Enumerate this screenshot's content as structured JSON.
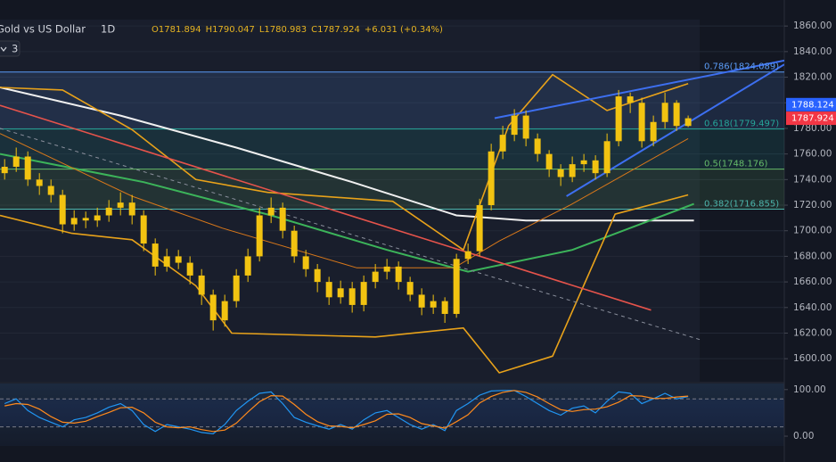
{
  "chart_data": {
    "type": "candlestick",
    "title": "Gold vs US Dollar",
    "interval": "1D",
    "ohlc_header": [
      "O1781.894",
      "H1790.047",
      "L1780.983",
      "C1787.924",
      "+6.031 (+0.34%)"
    ],
    "indicator_count": 3,
    "color": "#f2c311",
    "x": [
      0,
      1,
      2,
      3,
      4,
      5,
      6,
      7,
      8,
      9,
      10,
      11,
      12,
      13,
      14,
      15,
      16,
      17,
      18,
      19,
      20,
      21,
      22,
      23,
      24,
      25,
      26,
      27,
      28,
      29,
      30,
      31,
      32,
      33,
      34,
      35,
      36,
      37,
      38,
      39,
      40,
      41,
      42,
      43,
      44,
      45,
      46,
      47,
      48,
      49,
      50,
      51,
      52,
      53,
      54,
      55,
      56,
      57,
      58,
      59
    ],
    "open": [
      1745,
      1750,
      1758,
      1740,
      1735,
      1728,
      1705,
      1710,
      1708,
      1712,
      1718,
      1722,
      1712,
      1690,
      1672,
      1680,
      1675,
      1665,
      1650,
      1630,
      1645,
      1665,
      1680,
      1712,
      1718,
      1700,
      1680,
      1670,
      1660,
      1648,
      1655,
      1642,
      1660,
      1668,
      1672,
      1660,
      1650,
      1640,
      1645,
      1635,
      1678,
      1684,
      1720,
      1762,
      1775,
      1790,
      1772,
      1760,
      1748,
      1742,
      1752,
      1755,
      1745,
      1770,
      1805,
      1800,
      1770,
      1785,
      1800,
      1781.894
    ],
    "high": [
      1756,
      1765,
      1762,
      1745,
      1740,
      1732,
      1716,
      1715,
      1718,
      1724,
      1730,
      1728,
      1716,
      1694,
      1686,
      1685,
      1680,
      1670,
      1654,
      1650,
      1670,
      1686,
      1718,
      1726,
      1722,
      1704,
      1685,
      1674,
      1664,
      1661,
      1660,
      1665,
      1674,
      1678,
      1676,
      1664,
      1655,
      1650,
      1648,
      1682,
      1690,
      1725,
      1768,
      1782,
      1795,
      1794,
      1776,
      1763,
      1752,
      1758,
      1760,
      1759,
      1776,
      1810,
      1808,
      1804,
      1790,
      1808,
      1802,
      1790.047
    ],
    "low": [
      1740,
      1746,
      1735,
      1728,
      1722,
      1698,
      1700,
      1702,
      1703,
      1707,
      1712,
      1705,
      1684,
      1665,
      1668,
      1670,
      1658,
      1642,
      1622,
      1625,
      1640,
      1660,
      1676,
      1706,
      1694,
      1675,
      1664,
      1652,
      1642,
      1643,
      1636,
      1637,
      1655,
      1662,
      1654,
      1645,
      1634,
      1635,
      1628,
      1632,
      1674,
      1680,
      1716,
      1756,
      1770,
      1766,
      1754,
      1742,
      1735,
      1738,
      1746,
      1740,
      1742,
      1766,
      1792,
      1765,
      1766,
      1780,
      1778,
      1780.983
    ],
    "close": [
      1750,
      1758,
      1740,
      1735,
      1728,
      1705,
      1710,
      1708,
      1712,
      1718,
      1722,
      1712,
      1690,
      1672,
      1680,
      1675,
      1665,
      1650,
      1630,
      1645,
      1665,
      1680,
      1712,
      1718,
      1700,
      1680,
      1670,
      1660,
      1648,
      1655,
      1642,
      1660,
      1668,
      1672,
      1660,
      1650,
      1640,
      1645,
      1635,
      1678,
      1684,
      1720,
      1762,
      1775,
      1790,
      1772,
      1760,
      1748,
      1742,
      1752,
      1755,
      1745,
      1770,
      1805,
      1800,
      1770,
      1785,
      1800,
      1781.894,
      1787.924
    ],
    "xlim": [
      -0.4,
      67.3
    ],
    "ylim": [
      1582,
      1865
    ],
    "yticks": [
      {
        "value": 1860,
        "label": "1860.00"
      },
      {
        "value": 1840,
        "label": "1840.00"
      },
      {
        "value": 1820,
        "label": "1820.00"
      },
      {
        "value": 1800,
        "label": "1800.00"
      },
      {
        "value": 1780,
        "label": "1780.00"
      },
      {
        "value": 1760,
        "label": "1760.00"
      },
      {
        "value": 1740,
        "label": "1740.00"
      },
      {
        "value": 1720,
        "label": "1720.00"
      },
      {
        "value": 1700,
        "label": "1700.00"
      },
      {
        "value": 1680,
        "label": "1680.00"
      },
      {
        "value": 1660,
        "label": "1660.00"
      },
      {
        "value": 1640,
        "label": "1640.00"
      },
      {
        "value": 1620,
        "label": "1620.00"
      },
      {
        "value": 1600,
        "label": "1600.00"
      }
    ],
    "grid": true,
    "fib_levels": [
      {
        "value": 1824.089,
        "label": "0.786(1824.089)",
        "color": "#5b9cf6"
      },
      {
        "value": 1779.497,
        "label": "0.618(1779.497)",
        "color": "#26a69a"
      },
      {
        "value": 1748.176,
        "label": "0.5(1748.176)",
        "color": "#66bb6a"
      },
      {
        "value": 1716.855,
        "label": "0.382(1716.855)",
        "color": "#4db6ac"
      }
    ],
    "overlays": [
      {
        "color": "#f0f0f0",
        "width": 2,
        "x": [
          -0.4,
          10,
          20,
          30,
          39,
          45,
          59.5
        ],
        "values": [
          1812,
          1790,
          1765,
          1738,
          1712,
          1708,
          1708
        ]
      },
      {
        "color": "#3cb45a",
        "width": 2,
        "x": [
          -0.4,
          12,
          23,
          33,
          40,
          49,
          59.5
        ],
        "values": [
          1760,
          1738,
          1712,
          1685,
          1668,
          1685,
          1721
        ]
      },
      {
        "color": "#e8a21a",
        "width": 1.6,
        "x": [
          -0.4,
          5,
          11,
          16.5,
          22.7,
          33.5,
          39.6,
          43.5,
          47.3,
          52,
          59
        ],
        "values": [
          1812,
          1810,
          1779,
          1740,
          1730,
          1723,
          1685,
          1782,
          1822,
          1794,
          1815
        ]
      },
      {
        "color": "#e8a21a",
        "width": 1.6,
        "x": [
          -0.4,
          5.8,
          11,
          16.5,
          19.6,
          32,
          39.6,
          42.7,
          47.3,
          52.7,
          59
        ],
        "values": [
          1712,
          1698,
          1693,
          1657,
          1620,
          1617,
          1624,
          1589,
          1602,
          1713,
          1728
        ]
      },
      {
        "color": "#d9781a",
        "width": 1,
        "x": [
          -0.4,
          11,
          18.8,
          30.4,
          38.8,
          42.7,
          48.8,
          59
        ],
        "values": [
          1776,
          1727,
          1702,
          1671,
          1671,
          1692,
          1720,
          1772
        ]
      },
      {
        "color": "#e5534b",
        "width": 1.6,
        "x": [
          -0.4,
          55.8
        ],
        "values": [
          1798,
          1638
        ]
      },
      {
        "color": "#8a8f9c",
        "width": 1,
        "dash": true,
        "x": [
          -0.4,
          60
        ],
        "values": [
          1780,
          1615
        ]
      },
      {
        "color": "#3d6ff0",
        "width": 2,
        "x": [
          42.3,
          67.3
        ],
        "values": [
          1788,
          1833
        ]
      },
      {
        "color": "#3d6ff0",
        "width": 2,
        "x": [
          48.5,
          67.3
        ],
        "values": [
          1727,
          1830
        ]
      }
    ],
    "price_labels": [
      {
        "value": 1788.124,
        "color": "#2962ff"
      },
      {
        "value": 1787.924,
        "color": "#f23645"
      }
    ],
    "oscillator": {
      "ylim": [
        -21,
        113
      ],
      "yticks": [
        {
          "value": 0,
          "label": "0.00"
        },
        {
          "value": 100,
          "label": "100.00"
        }
      ],
      "levels": [
        80,
        20
      ],
      "series": [
        {
          "color": "#2196f3",
          "values": [
            70,
            80,
            55,
            40,
            30,
            20,
            35,
            40,
            50,
            62,
            70,
            55,
            25,
            10,
            25,
            20,
            15,
            8,
            5,
            25,
            55,
            75,
            92,
            95,
            70,
            40,
            30,
            22,
            15,
            25,
            15,
            35,
            50,
            55,
            40,
            25,
            15,
            25,
            12,
            55,
            70,
            88,
            97,
            98,
            98,
            85,
            70,
            55,
            45,
            60,
            65,
            50,
            75,
            95,
            92,
            70,
            80,
            92,
            80,
            85
          ]
        },
        {
          "color": "#ff8a1c",
          "values": [
            65,
            70,
            68,
            58,
            42,
            30,
            28,
            32,
            42,
            51,
            61,
            62,
            50,
            30,
            20,
            18,
            20,
            14,
            10,
            13,
            28,
            52,
            74,
            87,
            86,
            68,
            47,
            31,
            22,
            21,
            18,
            25,
            33,
            47,
            48,
            40,
            27,
            22,
            17,
            31,
            46,
            71,
            85,
            94,
            98,
            94,
            84,
            70,
            57,
            53,
            57,
            58,
            63,
            73,
            87,
            86,
            81,
            81,
            84,
            86
          ]
        }
      ]
    }
  }
}
